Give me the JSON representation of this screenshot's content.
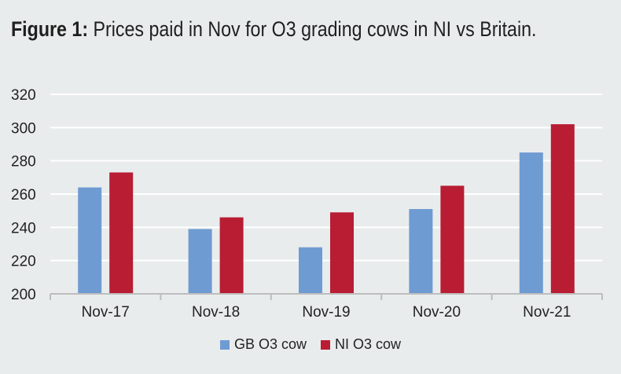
{
  "title": {
    "prefix": "Figure 1:",
    "text": "Prices paid in Nov for O3 grading cows in NI vs Britain."
  },
  "colors": {
    "background": "#e9ecec",
    "gb": "#6f9bd3",
    "ni": "#b81d33",
    "grid": "#ffffff"
  },
  "chart_data": {
    "type": "bar",
    "title": "Prices paid in Nov for O3 grading cows in NI vs Britain.",
    "xlabel": "",
    "ylabel": "",
    "ylim": [
      200,
      320
    ],
    "yticks": [
      200,
      220,
      240,
      260,
      280,
      300,
      320
    ],
    "grid": true,
    "legend_position": "bottom",
    "categories": [
      "Nov-17",
      "Nov-18",
      "Nov-19",
      "Nov-20",
      "Nov-21"
    ],
    "series": [
      {
        "name": "GB O3 cow",
        "values": [
          264,
          239,
          228,
          251,
          285
        ]
      },
      {
        "name": "NI O3 cow",
        "values": [
          273,
          246,
          249,
          265,
          302
        ]
      }
    ]
  }
}
